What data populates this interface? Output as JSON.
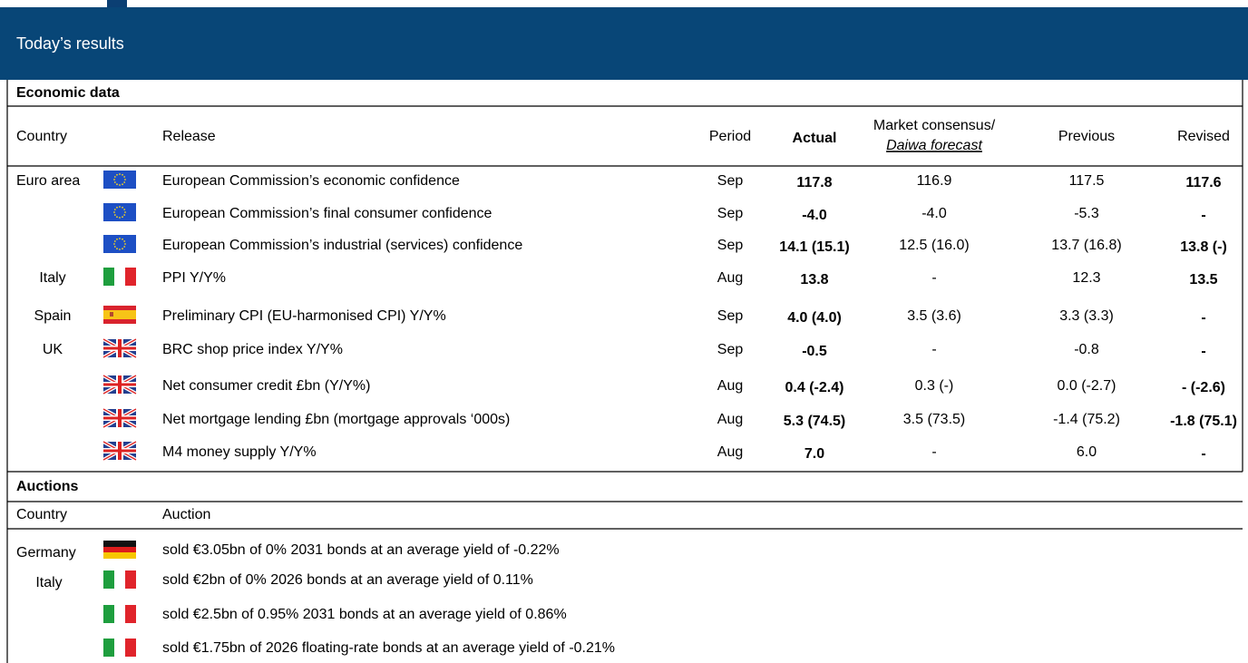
{
  "header": {
    "title": "Today’s results"
  },
  "economic": {
    "title": "Economic data",
    "columns": {
      "country": "Country",
      "release": "Release",
      "period": "Period",
      "actual": "Actual",
      "consensus": "Market consensus/",
      "forecast": "Daiwa forecast",
      "previous": "Previous",
      "revised": "Revised"
    },
    "rows": [
      {
        "country": "Euro area",
        "release": "European Commission’s economic confidence",
        "period": "Sep",
        "actual": "117.8",
        "consensus": "116.9",
        "previous": "117.5",
        "revised": "117.6"
      },
      {
        "country": null,
        "release": "European Commission’s final consumer confidence",
        "period": "Sep",
        "actual": "-4.0",
        "consensus": "-4.0",
        "previous": "-5.3",
        "revised": "-"
      },
      {
        "country": null,
        "release": "European Commission’s industrial (services) confidence",
        "period": "Sep",
        "actual": "14.1 (15.1)",
        "consensus": "12.5 (16.0)",
        "previous": "13.7 (16.8)",
        "revised": "13.8 (-)"
      },
      {
        "country": "Italy",
        "release": "PPI Y/Y%",
        "period": "Aug",
        "actual": "13.8",
        "consensus": "-",
        "previous": "12.3",
        "revised": "13.5"
      },
      {
        "country": "Spain",
        "release": "Preliminary CPI (EU-harmonised CPI) Y/Y%",
        "period": "Sep",
        "actual": "4.0 (4.0)",
        "consensus": "3.5 (3.6)",
        "previous": "3.3 (3.3)",
        "revised": "-"
      },
      {
        "country": "UK",
        "release": "BRC shop price index Y/Y%",
        "period": "Sep",
        "actual": "-0.5",
        "consensus": "-",
        "previous": "-0.8",
        "revised": "-"
      },
      {
        "country": null,
        "release": "Net consumer credit £bn (Y/Y%)",
        "period": "Aug",
        "actual": "0.4 (-2.4)",
        "consensus": "0.3 (-)",
        "previous": "0.0 (-2.7)",
        "revised": "- (-2.6)"
      },
      {
        "country": null,
        "release": "Net mortgage lending £bn (mortgage approvals ‘000s)",
        "period": "Aug",
        "actual": "5.3 (74.5)",
        "consensus": "3.5 (73.5)",
        "previous": "-1.4 (75.2)",
        "revised": "-1.8 (75.1)"
      },
      {
        "country": null,
        "release": "M4 money supply Y/Y%",
        "period": "Aug",
        "actual": "7.0",
        "consensus": "-",
        "previous": "6.0",
        "revised": "-"
      }
    ]
  },
  "auctions": {
    "title": "Auctions",
    "columns": {
      "country": "Country",
      "auction": "Auction"
    },
    "rows": [
      {
        "country": "Germany",
        "auction": "sold €3.05bn of 0% 2031 bonds at an average yield of -0.22%"
      },
      {
        "country": "Italy",
        "auction": "sold €2bn of 0% 2026 bonds at an average yield of 0.11%"
      },
      {
        "country": null,
        "auction": "sold €2.5bn of 0.95% 2031 bonds at an average yield of 0.86%"
      },
      {
        "country": null,
        "auction": "sold €1.75bn of 2026 floating-rate bonds at an average yield of -0.21%"
      }
    ]
  }
}
